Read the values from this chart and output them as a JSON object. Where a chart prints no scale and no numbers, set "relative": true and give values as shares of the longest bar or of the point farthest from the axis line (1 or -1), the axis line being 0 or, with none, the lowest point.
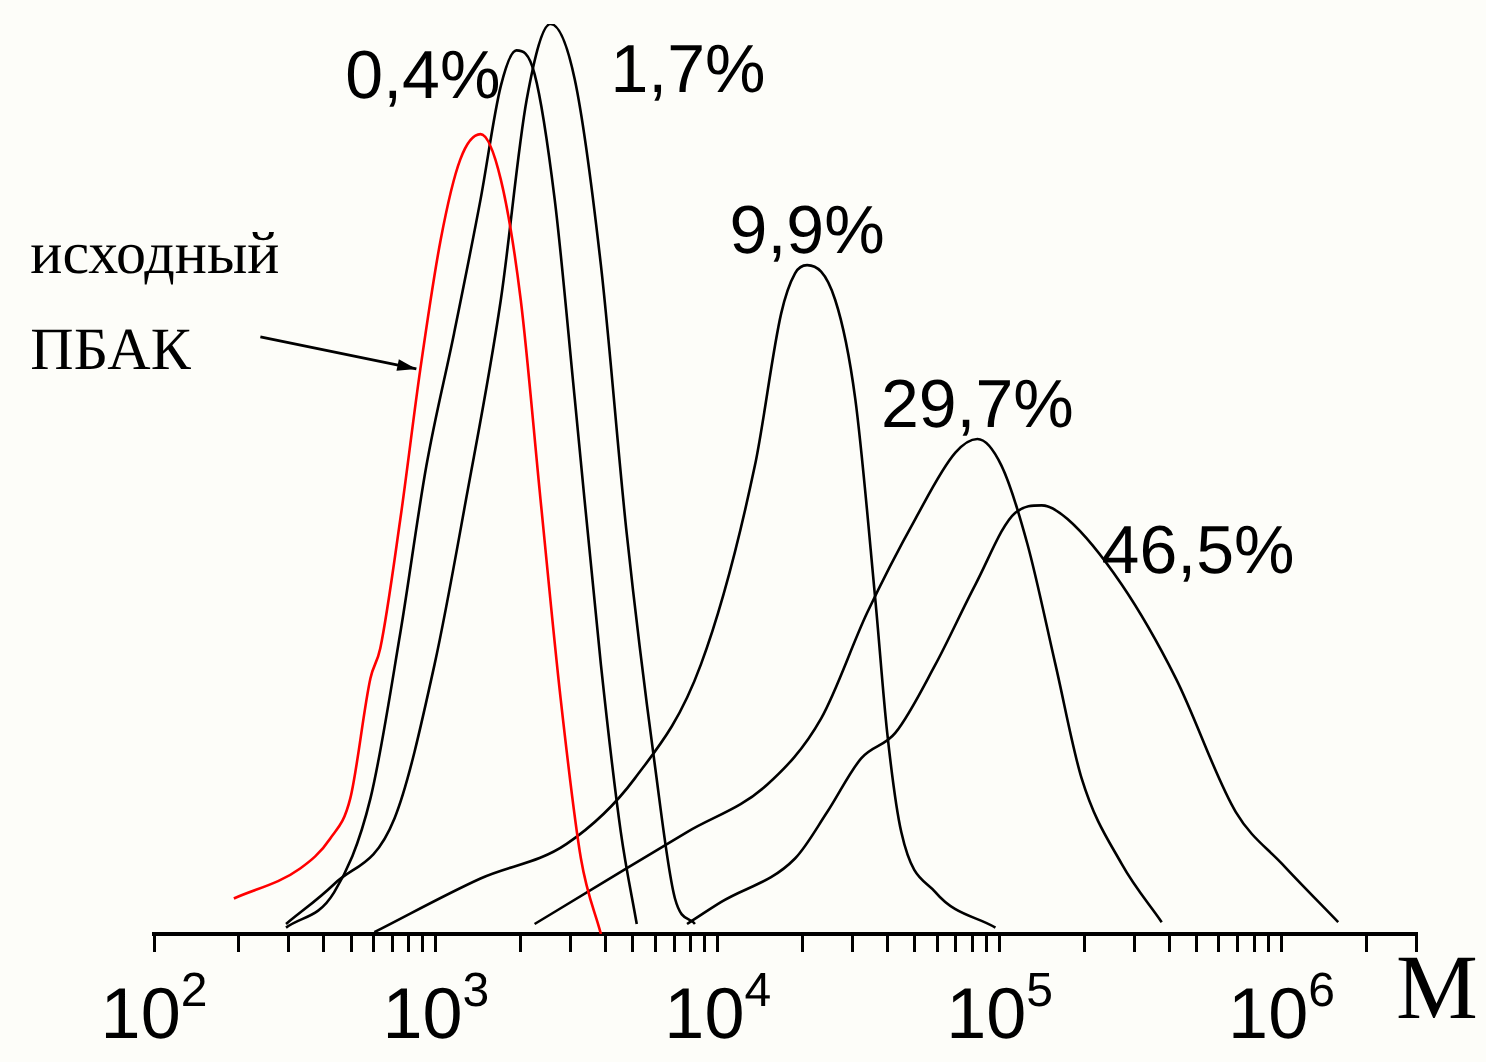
{
  "chart_data": {
    "type": "line",
    "relative": true,
    "xlabel": "M",
    "log": "x",
    "grid": false,
    "legend": false,
    "marker": "none",
    "line_style": "solid",
    "xlim": [
      100,
      3000000
    ],
    "xticks": [
      {
        "value": 100,
        "label": "10$^{2}$"
      },
      {
        "value": 200,
        "label": null
      },
      {
        "value": 300,
        "label": null
      },
      {
        "value": 400,
        "label": null
      },
      {
        "value": 500,
        "label": null
      },
      {
        "value": 600,
        "label": null
      },
      {
        "value": 700,
        "label": null
      },
      {
        "value": 800,
        "label": null
      },
      {
        "value": 900,
        "label": null
      },
      {
        "value": 1000,
        "label": "10$^{3}$"
      },
      {
        "value": 2000,
        "label": null
      },
      {
        "value": 3000,
        "label": null
      },
      {
        "value": 4000,
        "label": null
      },
      {
        "value": 5000,
        "label": null
      },
      {
        "value": 6000,
        "label": null
      },
      {
        "value": 7000,
        "label": null
      },
      {
        "value": 8000,
        "label": null
      },
      {
        "value": 9000,
        "label": null
      },
      {
        "value": 10000,
        "label": "10$^{4}$"
      },
      {
        "value": 20000,
        "label": null
      },
      {
        "value": 30000,
        "label": null
      },
      {
        "value": 40000,
        "label": null
      },
      {
        "value": 50000,
        "label": null
      },
      {
        "value": 60000,
        "label": null
      },
      {
        "value": 70000,
        "label": null
      },
      {
        "value": 80000,
        "label": null
      },
      {
        "value": 90000,
        "label": null
      },
      {
        "value": 100000,
        "label": "10$^{5}$"
      },
      {
        "value": 200000,
        "label": null
      },
      {
        "value": 300000,
        "label": null
      },
      {
        "value": 400000,
        "label": null
      },
      {
        "value": 500000,
        "label": null
      },
      {
        "value": 600000,
        "label": null
      },
      {
        "value": 700000,
        "label": null
      },
      {
        "value": 800000,
        "label": null
      },
      {
        "value": 900000,
        "label": null
      },
      {
        "value": 1000000,
        "label": "10$^{6}$"
      },
      {
        "value": 2000000,
        "label": null
      },
      {
        "value": 3000000,
        "label": null
      }
    ],
    "annotations": [
      {
        "text": "исходный ПБАК",
        "x": 881,
        "y": 0.621
      }
    ],
    "series": [
      {
        "color": "#ff0000",
        "x": [
          192,
          330,
          422,
          497,
          586,
          635,
          748,
          881,
          1040,
          1220,
          1440,
          1700,
          2000,
          2350,
          2770,
          3270,
          3850
        ],
        "values": [
          0.039,
          0.072,
          0.105,
          0.149,
          0.281,
          0.314,
          0.456,
          0.621,
          0.763,
          0.851,
          0.879,
          0.829,
          0.697,
          0.478,
          0.259,
          0.083,
          0
        ]
      },
      {
        "name": "0,4%",
        "color": "#000000",
        "x": [
          294,
          436,
          586,
          748,
          926,
          1160,
          1440,
          1700,
          1930,
          2240,
          2640,
          3110,
          3850,
          4530,
          5160
        ],
        "values": [
          0.007,
          0.046,
          0.149,
          0.331,
          0.515,
          0.66,
          0.807,
          0.932,
          0.971,
          0.945,
          0.807,
          0.588,
          0.296,
          0.112,
          0.011
        ]
      },
      {
        "name": "1,7%",
        "color": "#000000",
        "x": [
          294,
          436,
          713,
          989,
          1280,
          1700,
          2100,
          2550,
          3110,
          3850,
          4750,
          5980,
          7050,
          8300
        ],
        "values": [
          0.011,
          0.055,
          0.127,
          0.296,
          0.478,
          0.697,
          0.917,
          1,
          0.939,
          0.735,
          0.441,
          0.186,
          0.039,
          0.011
        ]
      },
      {
        "name": "9,9%",
        "color": "#000000",
        "x": [
          605,
          1440,
          2910,
          5080,
          8710,
          13550,
          16790,
          18800,
          20750,
          26090,
          30750,
          36210,
          39920,
          44780,
          59150,
          96630
        ],
        "values": [
          0.002,
          0.061,
          0.099,
          0.171,
          0.296,
          0.515,
          0.682,
          0.726,
          0.735,
          0.697,
          0.588,
          0.368,
          0.221,
          0.112,
          0.046,
          0.007
        ]
      },
      {
        "name": "29,7%",
        "color": "#000000",
        "x": [
          2240,
          3850,
          7780,
          14960,
          23280,
          33880,
          50200,
          69660,
          83380,
          101400,
          125600,
          157800,
          195400,
          271000,
          375800
        ],
        "values": [
          0.011,
          0.055,
          0.112,
          0.164,
          0.237,
          0.353,
          0.456,
          0.529,
          0.544,
          0.515,
          0.428,
          0.296,
          0.171,
          0.077,
          0.013
        ]
      },
      {
        "name": "46,5%",
        "color": "#000000",
        "x": [
          7780,
          10260,
          18800,
          24450,
          32270,
          42650,
          59150,
          82040,
          113700,
          140900,
          174100,
          271000,
          421700,
          688600,
          1004600,
          1589000
        ],
        "values": [
          0.011,
          0.035,
          0.083,
          0.134,
          0.193,
          0.221,
          0.296,
          0.384,
          0.463,
          0.471,
          0.456,
          0.384,
          0.281,
          0.134,
          0.077,
          0.013
        ]
      }
    ]
  }
}
